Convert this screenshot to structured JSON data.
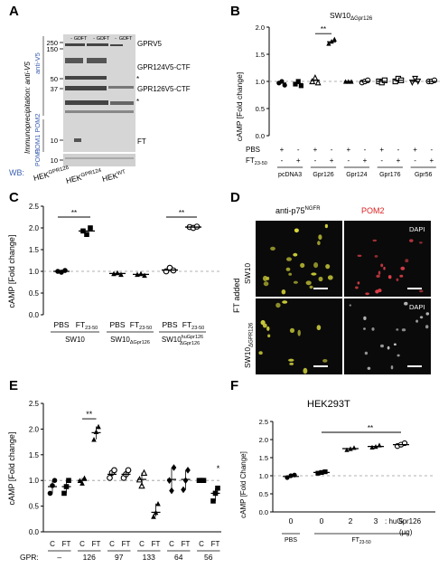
{
  "panels": {
    "a": "A",
    "b": "B",
    "c": "C",
    "d": "D",
    "e": "E",
    "f": "F"
  },
  "panelA": {
    "ip_label": "Immunoprecipitation: anti-V5",
    "anti_v5": "anti-V5",
    "wb": "WB:",
    "pom1pom2": "POM1 POM2",
    "pom1": "POM1",
    "markers": [
      "250",
      "150",
      "50",
      "37",
      "10",
      "10"
    ],
    "lane_labels": [
      "-",
      "GD",
      "FT",
      "-",
      "GD",
      "FT",
      "-",
      "GD",
      "FT"
    ],
    "bands": [
      "GPRV5",
      "GPR124V5-CTF",
      "GPR126V5-CTF",
      "FT"
    ],
    "stars": [
      "*",
      "*"
    ],
    "cell_lines": [
      {
        "base": "HEK",
        "sup": "GPR126"
      },
      {
        "base": "HEK",
        "sup": "GPR124"
      },
      {
        "base": "HEK",
        "sup": "WT"
      }
    ]
  },
  "panelB": {
    "title": "SW10",
    "title_sub": "ΔGpr126",
    "ylabel": "cAMP [Fold change]",
    "sig": "**",
    "row1": "PBS",
    "row2": "FT",
    "row2_sub": "23-50",
    "signs_pbs": [
      "+",
      "-",
      "+",
      "-",
      "+",
      "-",
      "+",
      "-",
      "+",
      "-"
    ],
    "signs_ft": [
      "-",
      "+",
      "-",
      "+",
      "-",
      "+",
      "-",
      "+",
      "-",
      "+"
    ],
    "groups": [
      "pcDNA3",
      "Gpr126",
      "Gpr124",
      "Gpr176",
      "Gpr56"
    ],
    "ticks": [
      "0.0",
      "0.5",
      "1.0",
      "1.5",
      "2.0"
    ]
  },
  "chart_data_b": {
    "type": "scatter",
    "ylim": [
      0,
      2
    ],
    "x": [
      "pcDNA3 PBS",
      "pcDNA3 FT",
      "Gpr126 PBS",
      "Gpr126 FT",
      "Gpr124 PBS",
      "Gpr124 FT",
      "Gpr176 PBS",
      "Gpr176 FT",
      "Gpr56 PBS",
      "Gpr56 FT"
    ],
    "means": [
      0.97,
      0.96,
      1.02,
      1.73,
      1.0,
      1.0,
      1.0,
      1.02,
      1.0,
      1.0
    ],
    "points": [
      [
        0.97,
        1.0,
        0.93
      ],
      [
        0.95,
        1.0,
        0.92
      ],
      [
        1.0,
        1.07,
        0.98
      ],
      [
        1.7,
        1.74,
        1.78
      ],
      [
        1.0,
        1.0,
        1.0
      ],
      [
        0.98,
        1.0,
        1.02
      ],
      [
        1.0,
        0.98,
        1.02
      ],
      [
        1.0,
        1.05,
        1.02
      ],
      [
        0.98,
        1.05,
        1.0
      ],
      [
        1.0,
        1.0,
        1.02
      ]
    ]
  },
  "panelC": {
    "ylabel": "cAMP [Fold change]",
    "sig": [
      "**",
      "**"
    ],
    "ticks": [
      "0.0",
      "0.5",
      "1.0",
      "1.5",
      "2.0",
      "2.5"
    ],
    "xlabels": [
      "PBS",
      "FT",
      "PBS",
      "FT",
      "PBS",
      "FT"
    ],
    "xsub": "23-50",
    "groups": [
      {
        "base": "SW10",
        "sub": "",
        "sup": ""
      },
      {
        "base": "SW10",
        "sub": "ΔGpr126",
        "sup": ""
      },
      {
        "base": "SW10",
        "sub": "ΔGpr126",
        "sup": "huGpr126"
      }
    ]
  },
  "chart_data_c": {
    "type": "scatter",
    "ylim": [
      0,
      2.5
    ],
    "x": [
      "SW10 PBS",
      "SW10 FT",
      "SW10ΔGpr126 PBS",
      "SW10ΔGpr126 FT",
      "SW10ΔGpr126 huGpr126 PBS",
      "SW10ΔGpr126 huGpr126 FT"
    ],
    "means": [
      1.0,
      1.93,
      0.95,
      0.93,
      1.03,
      2.02
    ],
    "points": [
      [
        1.0,
        0.98,
        1.02
      ],
      [
        1.93,
        1.85,
        2.0
      ],
      [
        0.95,
        0.97,
        0.93
      ],
      [
        0.93,
        0.95,
        0.91
      ],
      [
        1.0,
        1.08,
        1.02
      ],
      [
        2.02,
        2.0,
        2.03
      ]
    ]
  },
  "panelD": {
    "col1": "anti-p75",
    "col1_sup": "NGFR",
    "col2": "POM2",
    "dapi": [
      "DAPI",
      "DAPI"
    ],
    "side": "FT added",
    "row1": "SW10",
    "row2": "SW10",
    "row2_sub": "ΔGPR126",
    "colors": {
      "yellow": "#e6e63c",
      "red": "#e0404a",
      "white": "#dddddd"
    }
  },
  "panelE": {
    "ylabel": "cAMP [Fold change]",
    "sig": [
      "**",
      "*"
    ],
    "ticks": [
      "0.0",
      "0.5",
      "1.0",
      "1.5",
      "2.0",
      "2.5"
    ],
    "treat": [
      "C",
      "FT",
      "C",
      "FT",
      "C",
      "FT",
      "C",
      "FT",
      "C",
      "FT",
      "C",
      "FT"
    ],
    "gpr_label": "GPR:",
    "gpr_values": [
      "–",
      "126",
      "97",
      "133",
      "64",
      "56"
    ]
  },
  "chart_data_e": {
    "type": "scatter",
    "ylim": [
      0,
      2.5
    ],
    "x": [
      "– C",
      "– FT",
      "126 C",
      "126 FT",
      "97 C",
      "97 FT",
      "133 C",
      "133 FT",
      "64 C",
      "64 FT",
      "56 C",
      "56 FT"
    ],
    "means": [
      0.88,
      0.88,
      1.0,
      1.93,
      1.12,
      1.12,
      1.02,
      0.38,
      1.02,
      1.02,
      1.0,
      0.75
    ],
    "points": [
      [
        0.75,
        0.9,
        1.0
      ],
      [
        0.75,
        0.88,
        1.0
      ],
      [
        1.0,
        0.95,
        1.05
      ],
      [
        1.8,
        1.95,
        2.05
      ],
      [
        1.05,
        1.15,
        1.2
      ],
      [
        1.05,
        1.12,
        1.2
      ],
      [
        1.02,
        0.9,
        1.15
      ],
      [
        0.3,
        0.38,
        0.55
      ],
      [
        1.0,
        0.8,
        1.25
      ],
      [
        0.82,
        1.0,
        1.2
      ],
      [
        1.0,
        1.0,
        1.0
      ],
      [
        0.6,
        0.75,
        0.85
      ]
    ]
  },
  "panelF": {
    "title": "HEK293T",
    "ylabel": "cAMP [Fold Change]",
    "sig": "**",
    "ticks": [
      "0.0",
      "0.5",
      "1.0",
      "1.5",
      "2.0",
      "2.5"
    ],
    "doses": [
      "0",
      "0",
      "2",
      "3",
      "5"
    ],
    "dose_label": ": huGpr126",
    "unit": "(µg)",
    "pbs": "PBS",
    "ft": "FT",
    "ft_sub": "23-50"
  },
  "chart_data_f": {
    "type": "scatter",
    "ylim": [
      0,
      2.5
    ],
    "x": [
      "PBS 0",
      "FT 0",
      "FT 2",
      "FT 3",
      "FT 5"
    ],
    "means": [
      0.98,
      1.09,
      1.75,
      1.81,
      1.86
    ],
    "points": [
      [
        0.95,
        1.0,
        1.02
      ],
      [
        1.07,
        1.09,
        1.11
      ],
      [
        1.72,
        1.75,
        1.78
      ],
      [
        1.79,
        1.81,
        1.85
      ],
      [
        1.82,
        1.86,
        1.9
      ]
    ]
  }
}
